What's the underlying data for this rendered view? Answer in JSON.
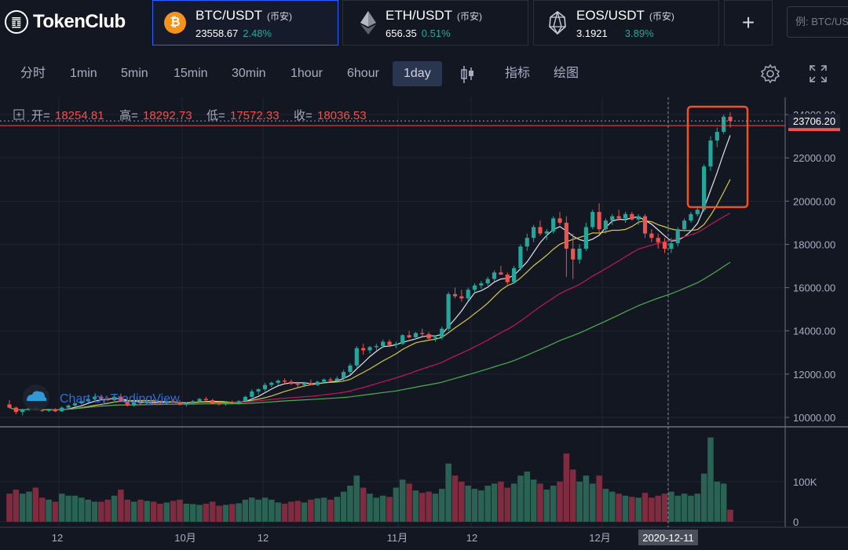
{
  "brand": {
    "name": "TokenClub",
    "mark_glyph": "䷩",
    "icon": "tokenclub-logo"
  },
  "pairs": [
    {
      "name": "BTC/USDT",
      "exchange": "(币安)",
      "price": "23558.67",
      "change": "2.48%",
      "icon": "bitcoin-icon",
      "icon_glyph": "₿",
      "color": "#f7931a",
      "active": true
    },
    {
      "name": "ETH/USDT",
      "exchange": "(币安)",
      "price": "656.35",
      "change": "0.51%",
      "icon": "ethereum-icon",
      "active": false
    },
    {
      "name": "EOS/USDT",
      "exchange": "(币安)",
      "price": "3.1921",
      "change": "3.89%",
      "icon": "eos-icon",
      "active": false
    }
  ],
  "add_label": "+",
  "search": {
    "placeholder": "例: BTC/US"
  },
  "toolbar": {
    "timeframes": [
      "分时",
      "1min",
      "5min",
      "15min",
      "30min",
      "1hour",
      "6hour",
      "1day"
    ],
    "active_timeframe": "1day",
    "indicators_label": "指标",
    "draw_label": "绘图"
  },
  "ohlc": {
    "open_label": "开=",
    "open": "18254.81",
    "high_label": "高=",
    "high": "18292.73",
    "low_label": "低=",
    "low": "17572.33",
    "close_label": "收=",
    "close": "18036.53"
  },
  "watermark": "Chart by TradingView",
  "colors": {
    "up": "#26a69a",
    "down": "#ef5350",
    "ma5": "#e0e3eb",
    "ma10": "#d4c948",
    "ma30": "#c2185b",
    "ma60": "#4caf50",
    "highlight": "#f4511e"
  },
  "chart_data": {
    "type": "candlestick",
    "price_axis": {
      "ticks": [
        "10000.00",
        "12000.00",
        "14000.00",
        "16000.00",
        "18000.00",
        "20000.00",
        "22000.00",
        "24000.00"
      ],
      "range": [
        9600,
        24800
      ]
    },
    "volume_axis": {
      "ticks": [
        "0",
        "100K"
      ],
      "range": [
        0,
        215000
      ]
    },
    "x_axis_labels": [
      "12",
      "10月",
      "12",
      "11月",
      "12",
      "12月"
    ],
    "last_price": "23706.20",
    "crosshair_date": "2020-12-11",
    "candles": [
      [
        10600,
        10800,
        10450,
        10450,
        70000
      ],
      [
        10450,
        10500,
        10150,
        10250,
        80000
      ],
      [
        10250,
        10400,
        10100,
        10350,
        70000
      ],
      [
        10350,
        10450,
        10300,
        10420,
        75000
      ],
      [
        10420,
        10500,
        10300,
        10380,
        85000
      ],
      [
        10380,
        10420,
        10250,
        10300,
        60000
      ],
      [
        10300,
        10400,
        10250,
        10380,
        55000
      ],
      [
        10380,
        10420,
        10250,
        10280,
        50000
      ],
      [
        10280,
        10500,
        10250,
        10450,
        70000
      ],
      [
        10450,
        10600,
        10400,
        10550,
        65000
      ],
      [
        10550,
        10700,
        10500,
        10650,
        65000
      ],
      [
        10650,
        10800,
        10600,
        10750,
        60000
      ],
      [
        10750,
        10900,
        10700,
        10850,
        55000
      ],
      [
        10850,
        11000,
        10800,
        10950,
        50000
      ],
      [
        10950,
        11050,
        10800,
        10850,
        50000
      ],
      [
        10850,
        10950,
        10750,
        10800,
        55000
      ],
      [
        10800,
        11000,
        10750,
        10950,
        65000
      ],
      [
        10950,
        11100,
        10700,
        10750,
        80000
      ],
      [
        10750,
        10800,
        10500,
        10550,
        55000
      ],
      [
        10550,
        10750,
        10500,
        10700,
        50000
      ],
      [
        10700,
        10800,
        10600,
        10650,
        55000
      ],
      [
        10650,
        10800,
        10600,
        10750,
        52000
      ],
      [
        10750,
        10850,
        10650,
        10700,
        50000
      ],
      [
        10700,
        10780,
        10600,
        10650,
        45000
      ],
      [
        10650,
        10800,
        10600,
        10750,
        48000
      ],
      [
        10750,
        10850,
        10650,
        10700,
        52000
      ],
      [
        10700,
        10800,
        10550,
        10600,
        55000
      ],
      [
        10600,
        10700,
        10500,
        10650,
        45000
      ],
      [
        10650,
        10800,
        10600,
        10750,
        44000
      ],
      [
        10750,
        10900,
        10700,
        10850,
        42000
      ],
      [
        10850,
        10950,
        10750,
        10800,
        45000
      ],
      [
        10800,
        10850,
        10600,
        10650,
        50000
      ],
      [
        10650,
        10720,
        10550,
        10600,
        40000
      ],
      [
        10600,
        10750,
        10550,
        10700,
        42000
      ],
      [
        10700,
        10780,
        10600,
        10650,
        44000
      ],
      [
        10650,
        10800,
        10600,
        10750,
        46000
      ],
      [
        10750,
        11000,
        10700,
        10950,
        55000
      ],
      [
        10950,
        11300,
        10900,
        11200,
        60000
      ],
      [
        11200,
        11350,
        11050,
        11300,
        55000
      ],
      [
        11300,
        11600,
        11200,
        11500,
        60000
      ],
      [
        11500,
        11650,
        11400,
        11600,
        55000
      ],
      [
        11600,
        11750,
        11500,
        11700,
        48000
      ],
      [
        11700,
        11800,
        11550,
        11650,
        45000
      ],
      [
        11650,
        11750,
        11500,
        11550,
        50000
      ],
      [
        11550,
        11650,
        11400,
        11500,
        52000
      ],
      [
        11500,
        11650,
        11400,
        11600,
        48000
      ],
      [
        11600,
        11750,
        11500,
        11500,
        55000
      ],
      [
        11500,
        11700,
        11450,
        11650,
        58000
      ],
      [
        11650,
        11800,
        11550,
        11750,
        60000
      ],
      [
        11750,
        11850,
        11650,
        11700,
        55000
      ],
      [
        11700,
        11900,
        11600,
        11800,
        62000
      ],
      [
        11800,
        12200,
        11700,
        12100,
        75000
      ],
      [
        12100,
        12500,
        12000,
        12400,
        90000
      ],
      [
        12400,
        13300,
        12300,
        13200,
        115000
      ],
      [
        13200,
        13400,
        12900,
        13100,
        85000
      ],
      [
        13100,
        13300,
        12950,
        13250,
        70000
      ],
      [
        13250,
        13400,
        13100,
        13300,
        60000
      ],
      [
        13300,
        13600,
        13200,
        13500,
        65000
      ],
      [
        13500,
        13600,
        13250,
        13350,
        62000
      ],
      [
        13350,
        13500,
        13200,
        13400,
        85000
      ],
      [
        13400,
        13850,
        13350,
        13800,
        105000
      ],
      [
        13800,
        14000,
        13650,
        13700,
        95000
      ],
      [
        13700,
        13950,
        13600,
        13900,
        78000
      ],
      [
        13900,
        14100,
        13750,
        13850,
        72000
      ],
      [
        13850,
        13950,
        13600,
        13650,
        75000
      ],
      [
        13650,
        13800,
        13500,
        13700,
        70000
      ],
      [
        13700,
        14200,
        13600,
        14100,
        82000
      ],
      [
        14100,
        15800,
        14000,
        15700,
        145000
      ],
      [
        15700,
        16000,
        15500,
        15600,
        115000
      ],
      [
        15600,
        15900,
        15350,
        15500,
        100000
      ],
      [
        15500,
        16000,
        15400,
        15900,
        90000
      ],
      [
        15900,
        16200,
        15800,
        16100,
        82000
      ],
      [
        16100,
        16300,
        15950,
        16200,
        78000
      ],
      [
        16200,
        16500,
        16100,
        16400,
        90000
      ],
      [
        16400,
        16800,
        16300,
        16700,
        95000
      ],
      [
        16700,
        17000,
        16600,
        16600,
        100000
      ],
      [
        16600,
        16700,
        16150,
        16250,
        85000
      ],
      [
        16250,
        17000,
        16200,
        16900,
        95000
      ],
      [
        16900,
        18000,
        16800,
        17900,
        115000
      ],
      [
        17900,
        18500,
        17700,
        18300,
        125000
      ],
      [
        18300,
        18900,
        18100,
        18800,
        105000
      ],
      [
        18800,
        19100,
        18400,
        18500,
        95000
      ],
      [
        18500,
        18700,
        18200,
        18600,
        80000
      ],
      [
        18600,
        19300,
        18500,
        19200,
        90000
      ],
      [
        19200,
        19500,
        18900,
        19000,
        100000
      ],
      [
        19000,
        19300,
        16500,
        17800,
        170000
      ],
      [
        17800,
        18500,
        16400,
        17300,
        130000
      ],
      [
        17300,
        18000,
        17100,
        17800,
        100000
      ],
      [
        17800,
        19000,
        17700,
        18800,
        115000
      ],
      [
        18800,
        19600,
        18700,
        19500,
        95000
      ],
      [
        19500,
        19900,
        18500,
        18700,
        115000
      ],
      [
        18700,
        19200,
        18500,
        19100,
        82000
      ],
      [
        19100,
        19400,
        18900,
        19300,
        75000
      ],
      [
        19300,
        19600,
        19100,
        19200,
        70000
      ],
      [
        19200,
        19500,
        19000,
        19400,
        65000
      ],
      [
        19400,
        19500,
        19100,
        19150,
        62000
      ],
      [
        19150,
        19400,
        18900,
        19300,
        60000
      ],
      [
        19300,
        19400,
        18300,
        18500,
        72000
      ],
      [
        18500,
        18700,
        18100,
        18300,
        60000
      ],
      [
        18300,
        18500,
        17800,
        18100,
        65000
      ],
      [
        18100,
        18300,
        17600,
        17800,
        70000
      ],
      [
        17800,
        18300,
        17600,
        18050,
        75000
      ],
      [
        18050,
        18800,
        17900,
        18700,
        65000
      ],
      [
        18700,
        19200,
        18600,
        19100,
        70000
      ],
      [
        19100,
        19500,
        19000,
        19400,
        65000
      ],
      [
        19400,
        19700,
        19300,
        19600,
        70000
      ],
      [
        19600,
        21700,
        19500,
        21600,
        120000
      ],
      [
        21600,
        23000,
        21400,
        22800,
        210000
      ],
      [
        22800,
        23400,
        22500,
        23200,
        100000
      ],
      [
        23200,
        24000,
        23100,
        23900,
        95000
      ],
      [
        23900,
        24100,
        23400,
        23706.2,
        30000
      ]
    ]
  }
}
